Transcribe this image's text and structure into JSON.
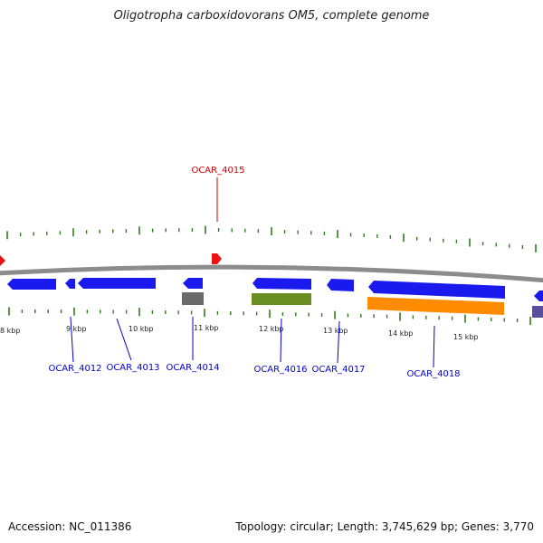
{
  "title": "Oligotropha carboxidovorans OM5, complete genome",
  "footer": {
    "accession": "Accession: NC_011386",
    "summary": "Topology: circular; Length: 3,745,629 bp; Genes: 3,770"
  },
  "colors": {
    "backbone": "#8c8c8c",
    "tick": "#2e7d1b",
    "gene_blue": "#1a1aee",
    "gene_gray": "#6a6a6a",
    "gene_green": "#6b8e23",
    "gene_orange": "#ff8c00",
    "gene_purple": "#5a4f9a",
    "marker_red": "#ee1111",
    "label_blue": "#0000cc",
    "label_red": "#cc0000"
  },
  "kbp_labels": [
    "8 kbp",
    "9 kbp",
    "10 kbp",
    "11 kbp",
    "12 kbp",
    "13 kbp",
    "14 kbp",
    "15 kbp"
  ],
  "gene_labels": {
    "ocar4012": "OCAR_4012",
    "ocar4013": "OCAR_4013",
    "ocar4014": "OCAR_4014",
    "ocar4015": "OCAR_4015",
    "ocar4016": "OCAR_4016",
    "ocar4017": "OCAR_4017",
    "ocar4018": "OCAR_4018"
  }
}
